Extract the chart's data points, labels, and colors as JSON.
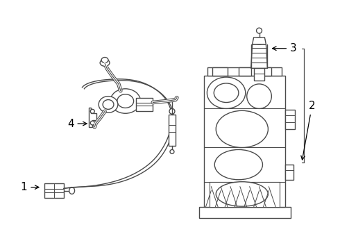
{
  "bg_color": "#ffffff",
  "line_color": "#4a4a4a",
  "label_color": "#000000",
  "figsize": [
    4.9,
    3.6
  ],
  "dpi": 100
}
